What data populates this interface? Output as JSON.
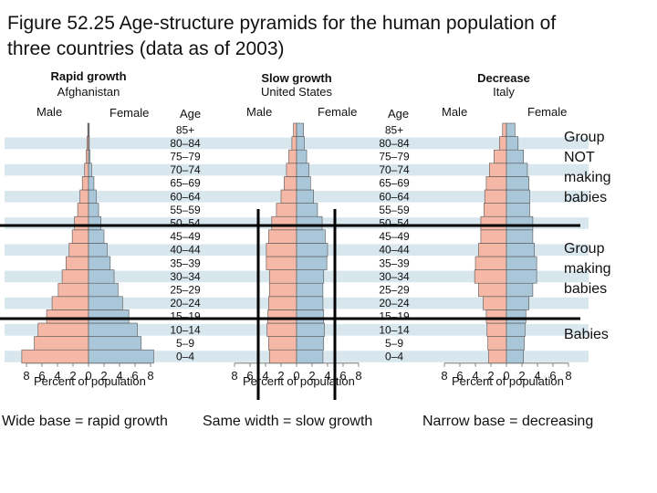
{
  "title_line1": "Figure 52.25 Age-structure pyramids for the human population of",
  "title_line2": "three countries (data as of 2003)",
  "ages": [
    "0–4",
    "5–9",
    "10–14",
    "15–19",
    "20–24",
    "25–29",
    "30–34",
    "35–39",
    "40–44",
    "45–49",
    "50–54",
    "55–59",
    "60–64",
    "65–69",
    "70–74",
    "75–79",
    "80–84",
    "85+"
  ],
  "age_header": "Age",
  "male_label": "Male",
  "female_label": "Female",
  "x_ticks": [
    "8",
    "6",
    "4",
    "2",
    "0",
    "2",
    "4",
    "6",
    "8"
  ],
  "x_axis_label": "Percent of population",
  "colors": {
    "male": "#f6b8a6",
    "female": "#a9c7d9",
    "band": "#d8e6ee",
    "edge": "#555555"
  },
  "notes": {
    "not_making_babies": "Group\nNOT\nmaking\nbabies",
    "making_babies": "Group\nmaking\nbabies",
    "babies": "Babies"
  },
  "captions": {
    "rapid": "Wide base = rapid growth",
    "slow": "Same width = slow growth",
    "decrease": "Narrow base = decreasing"
  },
  "chart_data": [
    {
      "type": "bar",
      "title": "Rapid growth",
      "subtitle": "Afghanistan",
      "xlabel": "Percent of population",
      "xlim": [
        -8,
        8
      ],
      "categories": [
        "0–4",
        "5–9",
        "10–14",
        "15–19",
        "20–24",
        "25–29",
        "30–34",
        "35–39",
        "40–44",
        "45–49",
        "50–54",
        "55–59",
        "60–64",
        "65–69",
        "70–74",
        "75–79",
        "80–84",
        "85+"
      ],
      "series": [
        {
          "name": "Male",
          "values": [
            8.6,
            7.0,
            6.5,
            5.4,
            4.7,
            3.9,
            3.4,
            2.9,
            2.5,
            2.1,
            1.8,
            1.4,
            1.1,
            0.8,
            0.5,
            0.3,
            0.2,
            0.1
          ]
        },
        {
          "name": "Female",
          "values": [
            8.4,
            6.8,
            6.3,
            5.2,
            4.4,
            3.8,
            3.3,
            2.8,
            2.4,
            2.0,
            1.6,
            1.3,
            1.0,
            0.7,
            0.4,
            0.2,
            0.1,
            0.1
          ]
        }
      ]
    },
    {
      "type": "bar",
      "title": "Slow growth",
      "subtitle": "United States",
      "xlabel": "Percent of population",
      "xlim": [
        -8,
        8
      ],
      "categories": [
        "0–4",
        "5–9",
        "10–14",
        "15–19",
        "20–24",
        "25–29",
        "30–34",
        "35–39",
        "40–44",
        "45–49",
        "50–54",
        "55–59",
        "60–64",
        "65–69",
        "70–74",
        "75–79",
        "80–84",
        "85+"
      ],
      "series": [
        {
          "name": "Male",
          "values": [
            3.5,
            3.6,
            3.8,
            3.7,
            3.6,
            3.5,
            3.5,
            3.9,
            3.9,
            3.6,
            3.2,
            2.6,
            2.0,
            1.6,
            1.3,
            1.0,
            0.6,
            0.4
          ]
        },
        {
          "name": "Female",
          "values": [
            3.4,
            3.5,
            3.6,
            3.5,
            3.4,
            3.4,
            3.5,
            3.9,
            4.0,
            3.7,
            3.3,
            2.7,
            2.2,
            1.8,
            1.6,
            1.3,
            1.0,
            0.9
          ]
        }
      ]
    },
    {
      "type": "bar",
      "title": "Decrease",
      "subtitle": "Italy",
      "xlabel": "Percent of population",
      "xlim": [
        -8,
        8
      ],
      "categories": [
        "0–4",
        "5–9",
        "10–14",
        "15–19",
        "20–24",
        "25–29",
        "30–34",
        "35–39",
        "40–44",
        "45–49",
        "50–54",
        "55–59",
        "60–64",
        "65–69",
        "70–74",
        "75–79",
        "80–84",
        "85+"
      ],
      "series": [
        {
          "name": "Male",
          "values": [
            2.3,
            2.4,
            2.5,
            2.6,
            3.0,
            3.6,
            4.1,
            4.0,
            3.6,
            3.3,
            3.3,
            2.9,
            2.8,
            2.6,
            2.2,
            1.6,
            0.9,
            0.5
          ]
        },
        {
          "name": "Female",
          "values": [
            2.2,
            2.3,
            2.4,
            2.5,
            2.9,
            3.4,
            3.9,
            3.9,
            3.6,
            3.4,
            3.4,
            3.0,
            3.0,
            2.9,
            2.7,
            2.2,
            1.5,
            1.1
          ]
        }
      ]
    }
  ]
}
